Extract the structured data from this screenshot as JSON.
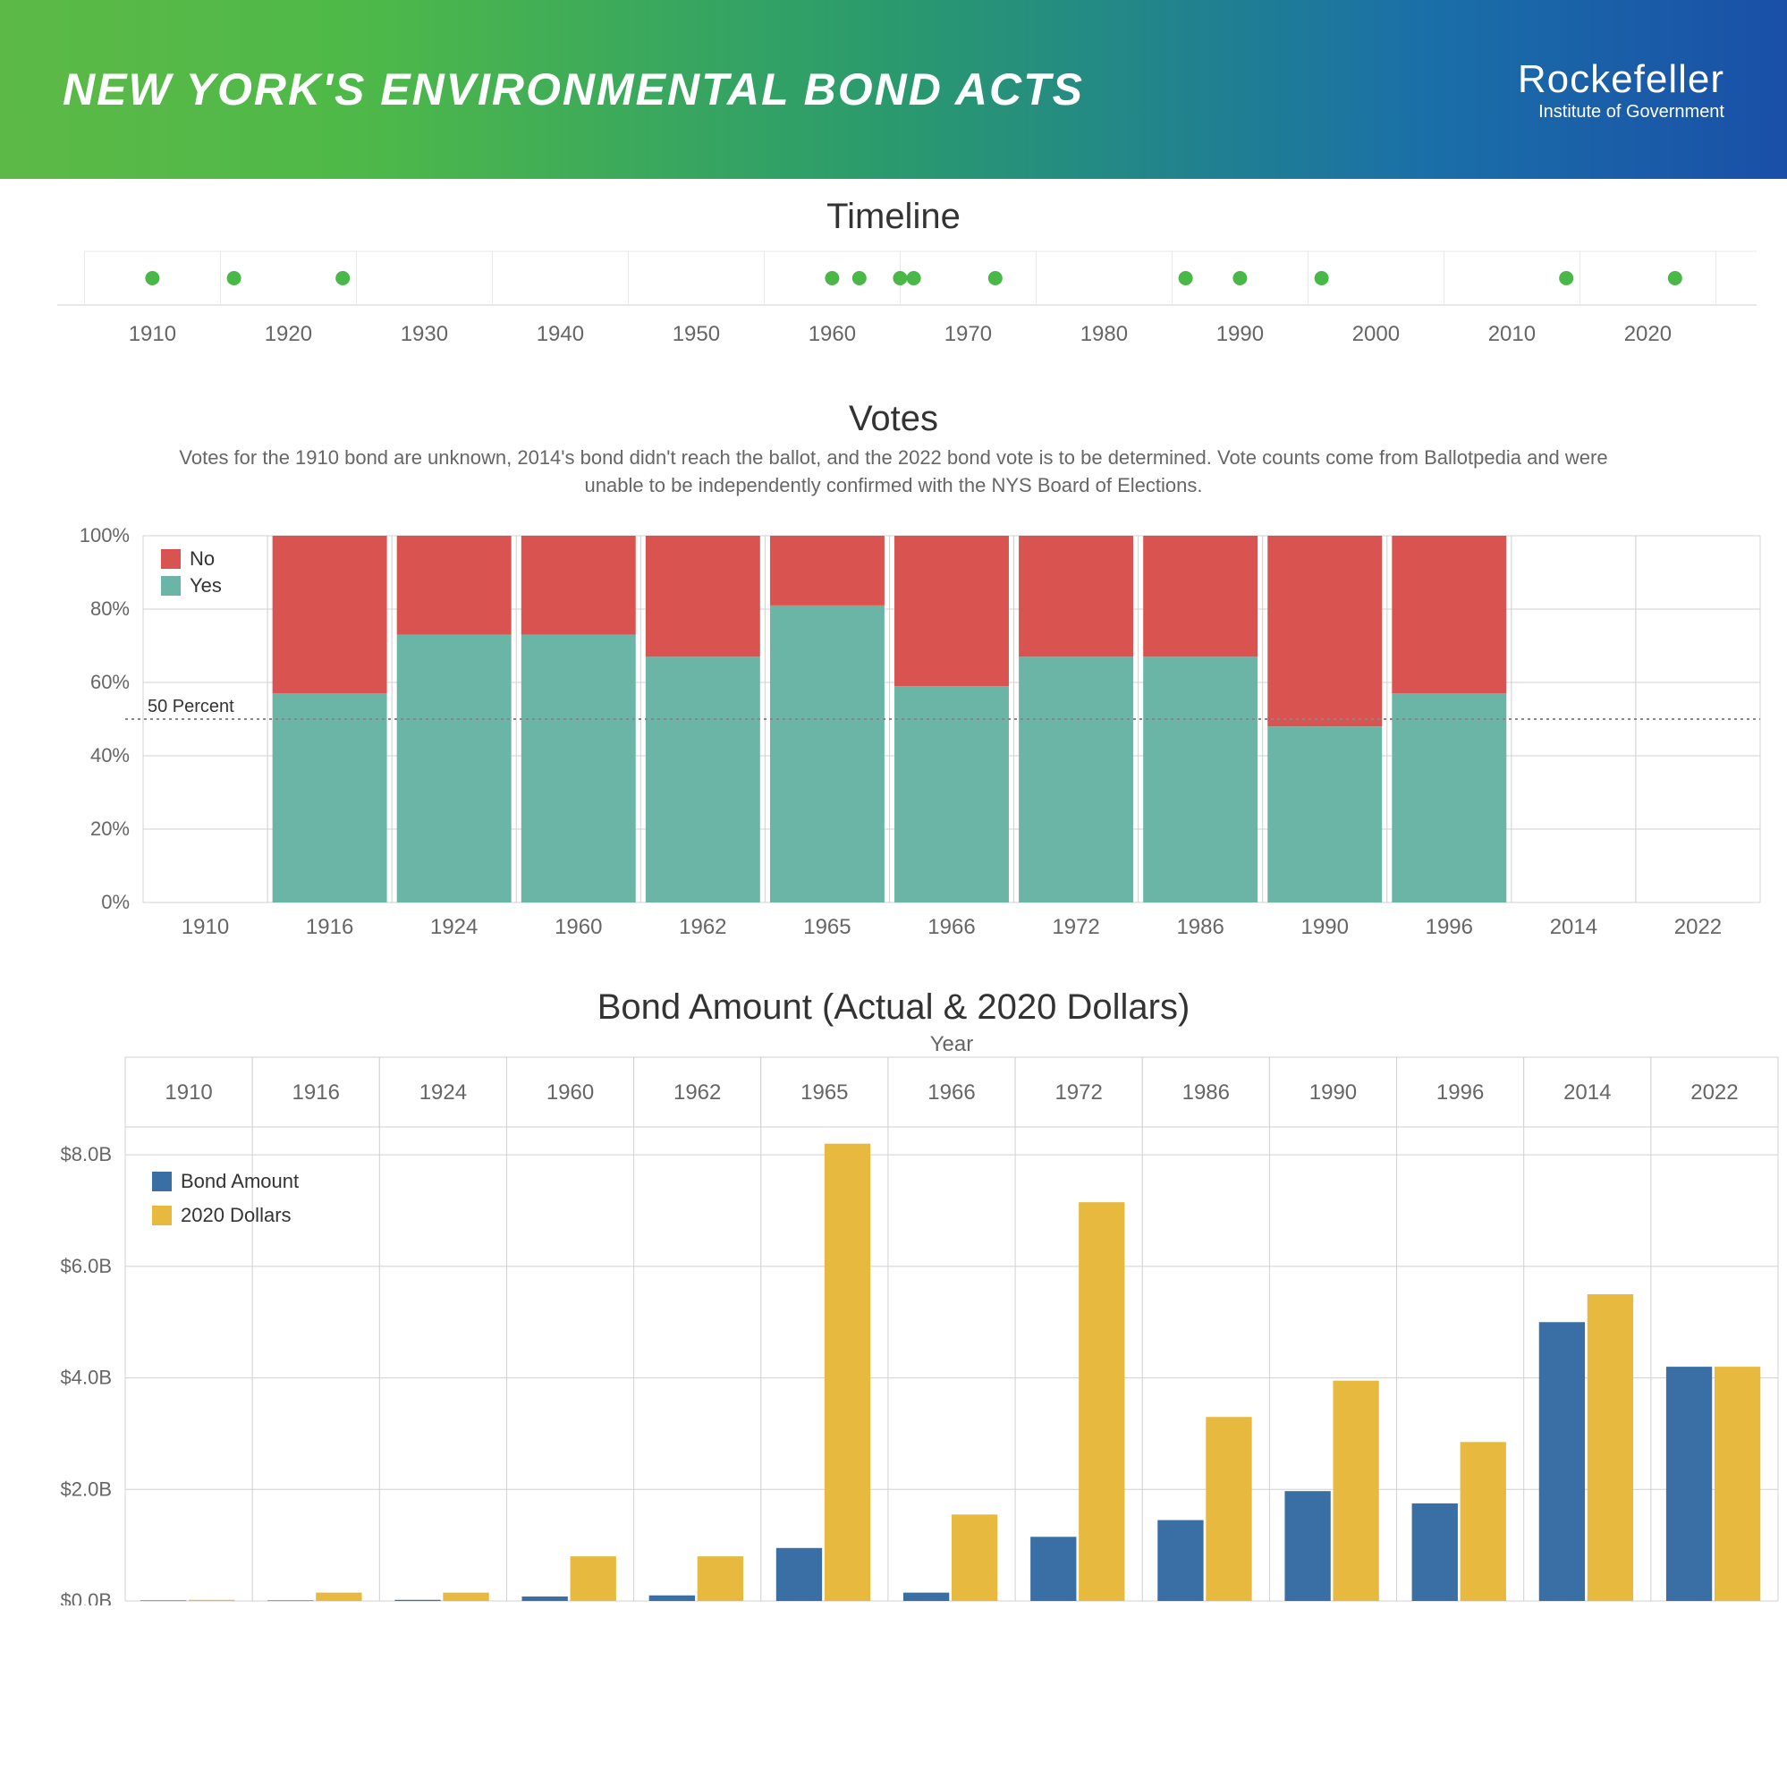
{
  "header": {
    "title": "NEW YORK'S ENVIRONMENTAL BOND ACTS",
    "logo_main": "Rockefeller",
    "logo_sub": "Institute of Government",
    "gradient_start": "#5cb947",
    "gradient_end": "#1a4fa8"
  },
  "timeline": {
    "title": "Timeline",
    "type": "scatter",
    "x_ticks": [
      1910,
      1920,
      1930,
      1940,
      1950,
      1960,
      1970,
      1980,
      1990,
      2000,
      2010,
      2020
    ],
    "xlim": [
      1903,
      2028
    ],
    "points": [
      1910,
      1916,
      1924,
      1960,
      1962,
      1965,
      1966,
      1972,
      1986,
      1990,
      1996,
      2014,
      2022
    ],
    "dot_color": "#4ab749",
    "dot_radius": 8,
    "background_color": "#ffffff",
    "strip_color": "#e8e8e8"
  },
  "votes": {
    "title": "Votes",
    "subtitle": "Votes for the 1910 bond are unknown, 2014's bond didn't reach the ballot, and the 2022 bond vote is to be determined. Vote counts come from Ballotpedia and were unable to be independently confirmed with the NYS Board of Elections.",
    "type": "stacked-bar",
    "categories": [
      "1910",
      "1916",
      "1924",
      "1960",
      "1962",
      "1965",
      "1966",
      "1972",
      "1986",
      "1990",
      "1996",
      "2014",
      "2022"
    ],
    "yes_pct": [
      null,
      57,
      73,
      73,
      67,
      81,
      59,
      67,
      67,
      48,
      57,
      null,
      null
    ],
    "ylim": [
      0,
      100
    ],
    "ytick_step": 20,
    "ytick_suffix": "%",
    "colors": {
      "yes": "#6bb5a7",
      "no": "#d95350"
    },
    "legend": [
      "No",
      "Yes"
    ],
    "reference_line": {
      "value": 50,
      "label": "50 Percent"
    },
    "bar_width": 0.92,
    "grid_color": "#d0d0d0"
  },
  "amounts": {
    "title": "Bond Amount (Actual & 2020 Dollars)",
    "subtitle": "Year",
    "type": "grouped-bar",
    "categories": [
      "1910",
      "1916",
      "1924",
      "1960",
      "1962",
      "1965",
      "1966",
      "1972",
      "1986",
      "1990",
      "1996",
      "2014",
      "2022"
    ],
    "series": [
      {
        "name": "Bond Amount",
        "color": "#3a6fa6",
        "values": [
          0.01,
          0.01,
          0.02,
          0.08,
          0.1,
          0.95,
          0.15,
          1.15,
          1.45,
          1.97,
          1.75,
          5.0,
          4.2
        ]
      },
      {
        "name": "2020 Dollars",
        "color": "#e8b93f",
        "values": [
          0.02,
          0.15,
          0.15,
          0.8,
          0.8,
          8.2,
          1.55,
          7.15,
          3.3,
          3.95,
          2.85,
          5.5,
          4.2
        ]
      }
    ],
    "ylim": [
      0,
      8.5
    ],
    "ytick_step": 2.0,
    "ytick_prefix": "$",
    "ytick_suffix": "B",
    "ytickformat": "0.1f",
    "bar_width": 0.38,
    "grid_color": "#d0d0d0",
    "facet_header_bg": "#ffffff"
  }
}
